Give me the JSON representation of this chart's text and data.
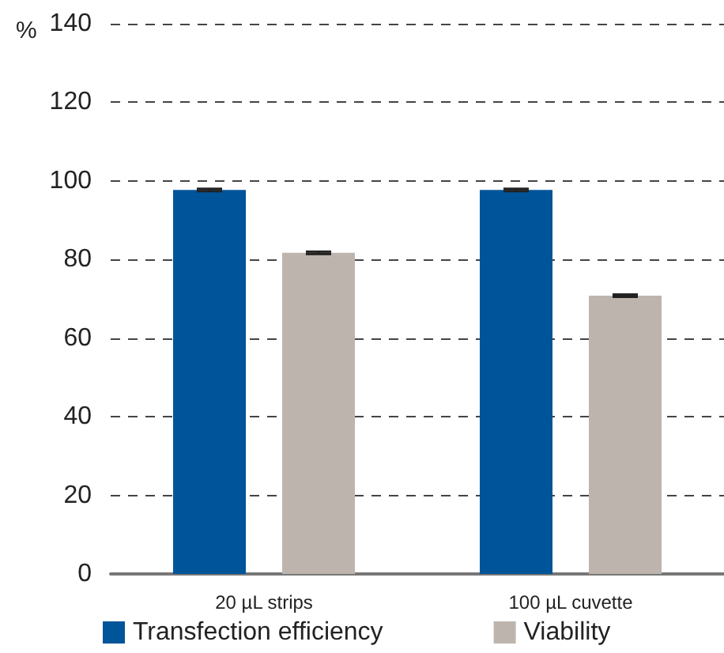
{
  "chart_data": {
    "type": "bar",
    "ylabel": "%",
    "categories": [
      "20 µL strips",
      "100 µL cuvette"
    ],
    "series": [
      {
        "name": "Transfection efficiency",
        "color": "#00549a",
        "values": [
          97.7,
          97.7
        ],
        "errors": [
          0.3,
          0.3
        ]
      },
      {
        "name": "Viability",
        "color": "#bdb5ad",
        "values": [
          81.7,
          70.8
        ],
        "errors": [
          0.3,
          0.3
        ]
      }
    ],
    "ylim": [
      0,
      140
    ],
    "yticks": [
      0,
      20,
      40,
      60,
      80,
      100,
      120,
      140
    ],
    "grid": "y",
    "legend": "bottom left"
  }
}
